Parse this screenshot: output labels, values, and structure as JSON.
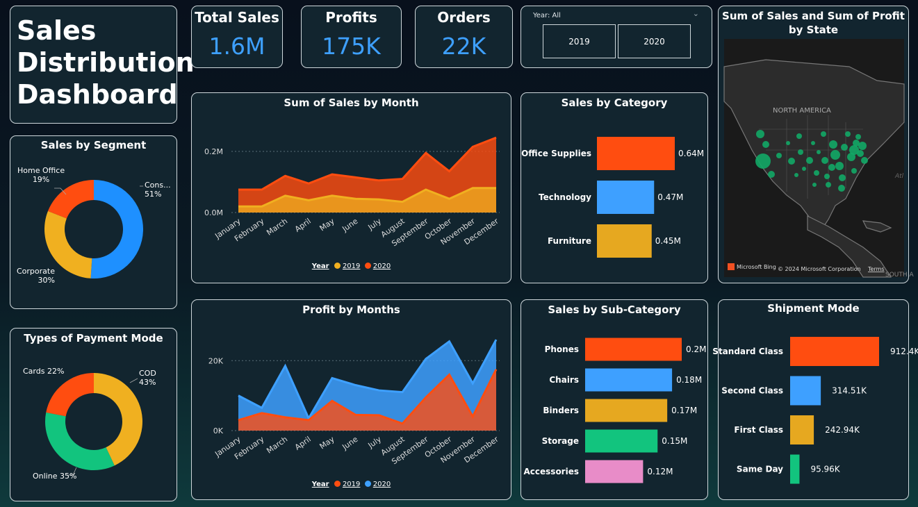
{
  "dashboard_title_lines": [
    "Sales",
    "Distribution",
    "Dashboard"
  ],
  "kpis": [
    {
      "title": "Total Sales",
      "value": "1.6M"
    },
    {
      "title": "Profits",
      "value": "175K"
    },
    {
      "title": "Orders",
      "value": "22K"
    }
  ],
  "year_slicer": {
    "label": "Year: All",
    "options": [
      "2019",
      "2020"
    ]
  },
  "segment": {
    "title": "Sales by Segment",
    "slices": [
      {
        "name": "Consumer",
        "pct": 51,
        "color": "#1e90ff",
        "label": "Cons...",
        "pct_label": "51%"
      },
      {
        "name": "Corporate",
        "pct": 30,
        "color": "#f0b020",
        "label": "Corporate",
        "pct_label": "30%"
      },
      {
        "name": "Home Office",
        "pct": 19,
        "color": "#ff4d10",
        "label": "Home Office",
        "pct_label": "19%"
      }
    ]
  },
  "payment": {
    "title": "Types of Payment Mode",
    "slices": [
      {
        "name": "COD",
        "pct": 43,
        "color": "#f0b020",
        "label": "COD",
        "pct_label": "43%"
      },
      {
        "name": "Online",
        "pct": 35,
        "color": "#12c47e",
        "label": "Online 35%"
      },
      {
        "name": "Cards",
        "pct": 22,
        "color": "#ff4d10",
        "label": "Cards 22%"
      }
    ]
  },
  "sales_month": {
    "title": "Sum of Sales by Month",
    "legend_title": "Year",
    "series_names": [
      "2019",
      "2020"
    ],
    "y_ticks": [
      "0.2M",
      "0.0M"
    ]
  },
  "profit_month": {
    "title": "Profit by Months",
    "legend_title": "Year",
    "series_names": [
      "2019",
      "2020"
    ],
    "y_ticks": [
      "20K",
      "0K"
    ]
  },
  "category": {
    "title": "Sales by Category",
    "bars": [
      {
        "label": "Office Supplies",
        "value": 0.64,
        "text": "0.64M",
        "color": "#ff4d10"
      },
      {
        "label": "Technology",
        "value": 0.47,
        "text": "0.47M",
        "color": "#3ea0ff"
      },
      {
        "label": "Furniture",
        "value": 0.45,
        "text": "0.45M",
        "color": "#e6a820"
      }
    ]
  },
  "subcategory": {
    "title": "Sales by Sub-Category",
    "bars": [
      {
        "label": "Phones",
        "value": 0.2,
        "text": "0.2M",
        "color": "#ff4d10"
      },
      {
        "label": "Chairs",
        "value": 0.18,
        "text": "0.18M",
        "color": "#3ea0ff"
      },
      {
        "label": "Binders",
        "value": 0.17,
        "text": "0.17M",
        "color": "#e6a820"
      },
      {
        "label": "Storage",
        "value": 0.15,
        "text": "0.15M",
        "color": "#12c47e"
      },
      {
        "label": "Accessories",
        "value": 0.12,
        "text": "0.12M",
        "color": "#e88cc8"
      }
    ]
  },
  "shipment": {
    "title": "Shipment Mode",
    "bars": [
      {
        "label": "Standard Class",
        "value": 912.4,
        "text": "912.4K",
        "color": "#ff4d10"
      },
      {
        "label": "Second Class",
        "value": 314.51,
        "text": "314.51K",
        "color": "#3ea0ff"
      },
      {
        "label": "First Class",
        "value": 242.94,
        "text": "242.94K",
        "color": "#e6a820"
      },
      {
        "label": "Same Day",
        "value": 95.96,
        "text": "95.96K",
        "color": "#12c47e"
      }
    ]
  },
  "map": {
    "title_line1": "Sum of Sales and Sum of Profit",
    "title_line2": "by State",
    "region_label": "NORTH AMERICA",
    "region_label_south": "SOUTH A",
    "edge_label": "Atl",
    "bing_label": "Microsoft Bing",
    "copyright": "© 2024 Microsoft Corporation",
    "terms": "Terms",
    "bubble_color": "#12a866"
  },
  "chart_data": [
    {
      "type": "area",
      "title": "Sum of Sales by Month",
      "categories": [
        "January",
        "February",
        "March",
        "April",
        "May",
        "June",
        "July",
        "August",
        "September",
        "October",
        "November",
        "December"
      ],
      "ylim": [
        0,
        0.25
      ],
      "y_unit": "M",
      "legend_title": "Year",
      "series": [
        {
          "name": "2019",
          "color": "#f0b020",
          "values": [
            0.02,
            0.02,
            0.055,
            0.04,
            0.055,
            0.045,
            0.043,
            0.035,
            0.075,
            0.045,
            0.08,
            0.08
          ]
        },
        {
          "name": "2020",
          "color": "#ff4d10",
          "values": [
            0.075,
            0.075,
            0.12,
            0.095,
            0.125,
            0.115,
            0.105,
            0.11,
            0.195,
            0.135,
            0.215,
            0.245
          ]
        }
      ]
    },
    {
      "type": "area",
      "title": "Profit by Months",
      "categories": [
        "January",
        "February",
        "March",
        "April",
        "May",
        "June",
        "July",
        "August",
        "September",
        "October",
        "November",
        "December"
      ],
      "ylim": [
        0,
        27000
      ],
      "legend_title": "Year",
      "series": [
        {
          "name": "2019",
          "color": "#ff4d10",
          "values": [
            3000,
            5000,
            3800,
            3000,
            8500,
            4500,
            4400,
            2000,
            9500,
            16000,
            4000,
            17500
          ]
        },
        {
          "name": "2020",
          "color": "#3ea0ff",
          "values": [
            10000,
            6500,
            18500,
            3500,
            15000,
            13000,
            11500,
            11000,
            20500,
            25500,
            13500,
            26000
          ]
        }
      ]
    },
    {
      "type": "bar",
      "title": "Sales by Category",
      "categories": [
        "Office Supplies",
        "Technology",
        "Furniture"
      ],
      "values": [
        0.64,
        0.47,
        0.45
      ],
      "y_unit": "M"
    },
    {
      "type": "bar",
      "title": "Sales by Sub-Category",
      "categories": [
        "Phones",
        "Chairs",
        "Binders",
        "Storage",
        "Accessories"
      ],
      "values": [
        0.2,
        0.18,
        0.17,
        0.15,
        0.12
      ],
      "y_unit": "M"
    },
    {
      "type": "bar",
      "title": "Shipment Mode",
      "categories": [
        "Standard Class",
        "Second Class",
        "First Class",
        "Same Day"
      ],
      "values": [
        912.4,
        314.51,
        242.94,
        95.96
      ],
      "y_unit": "K"
    },
    {
      "type": "pie",
      "title": "Sales by Segment",
      "categories": [
        "Consumer",
        "Corporate",
        "Home Office"
      ],
      "values": [
        51,
        30,
        19
      ]
    },
    {
      "type": "pie",
      "title": "Types of Payment Mode",
      "categories": [
        "COD",
        "Online",
        "Cards"
      ],
      "values": [
        43,
        35,
        22
      ]
    }
  ]
}
